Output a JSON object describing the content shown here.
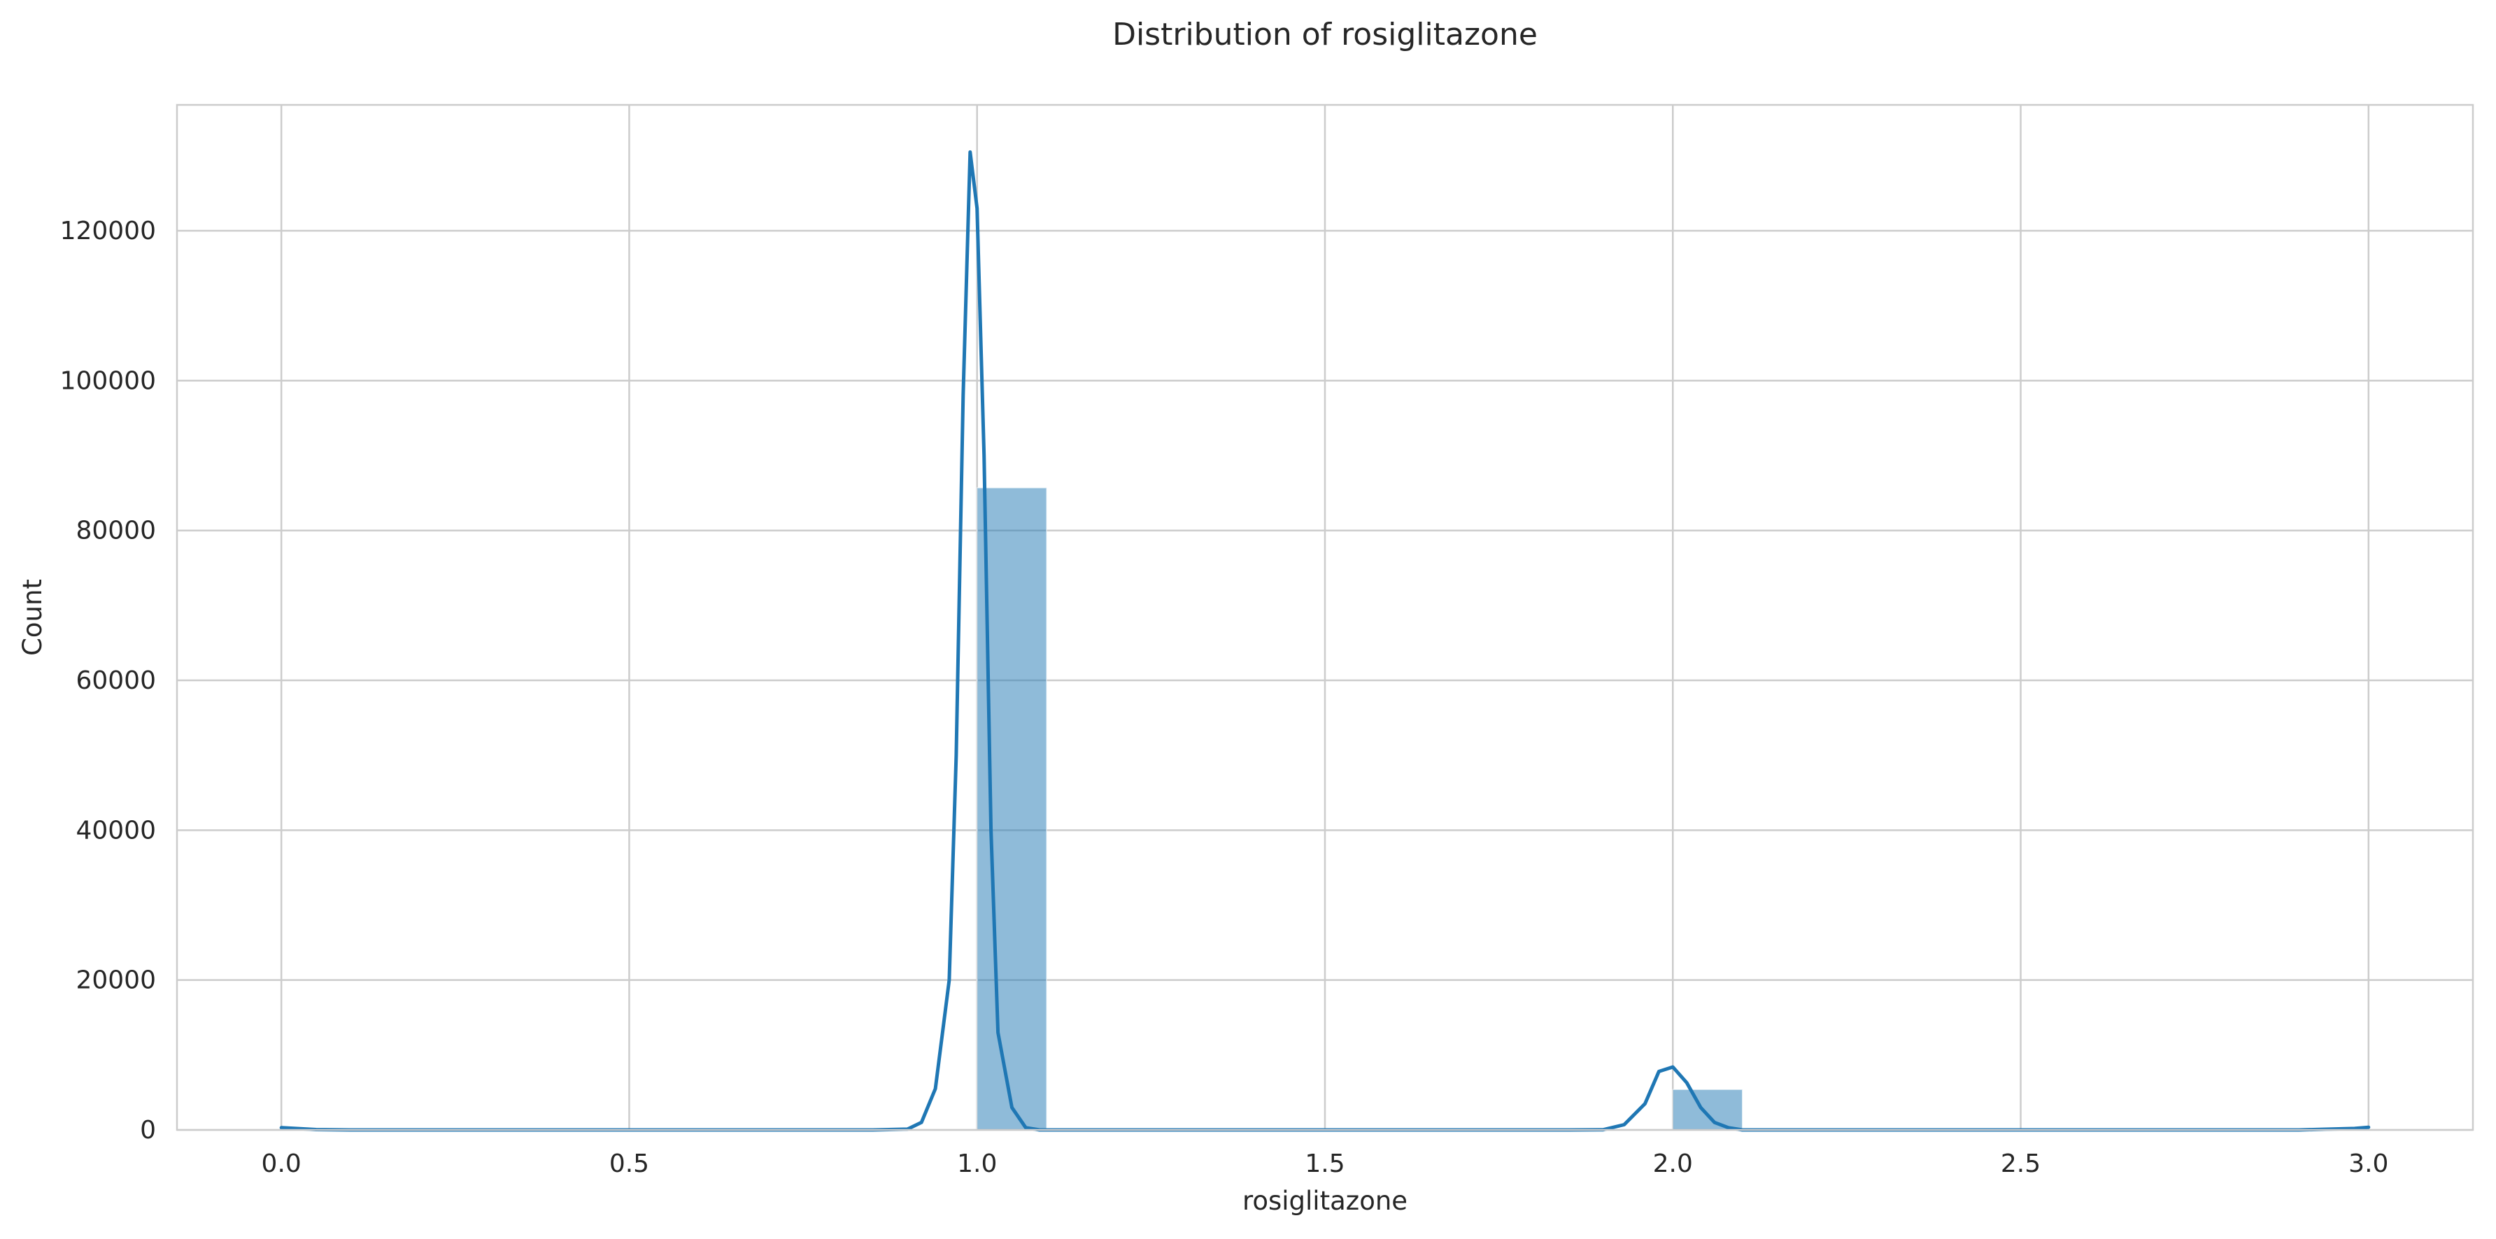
{
  "chart_data": {
    "type": "bar",
    "title": "Distribution of rosiglitazone",
    "xlabel": "rosiglitazone",
    "ylabel": "Count",
    "xlim": [
      -0.15,
      3.15
    ],
    "ylim": [
      0,
      136800
    ],
    "xticks": [
      0.0,
      0.5,
      1.0,
      1.5,
      2.0,
      2.5,
      3.0
    ],
    "xtick_labels": [
      "0.0",
      "0.5",
      "1.0",
      "1.5",
      "2.0",
      "2.5",
      "3.0"
    ],
    "yticks": [
      0,
      20000,
      40000,
      60000,
      80000,
      100000,
      120000
    ],
    "ytick_labels": [
      "0",
      "20000",
      "40000",
      "60000",
      "80000",
      "100000",
      "120000"
    ],
    "grid": true,
    "bin_width": 0.1,
    "bars": [
      {
        "x_start": 0.0,
        "value": 6
      },
      {
        "x_start": 1.0,
        "value": 85700
      },
      {
        "x_start": 2.0,
        "value": 5400
      },
      {
        "x_start": 2.9,
        "value": 2
      }
    ],
    "kde": {
      "name": "",
      "x": [
        0.0,
        0.05,
        0.1,
        0.5,
        0.85,
        0.9,
        0.92,
        0.94,
        0.96,
        0.97,
        0.98,
        0.99,
        1.0,
        1.01,
        1.02,
        1.03,
        1.05,
        1.07,
        1.09,
        1.12,
        1.2,
        1.5,
        1.85,
        1.9,
        1.93,
        1.96,
        1.98,
        2.0,
        2.02,
        2.04,
        2.06,
        2.08,
        2.1,
        2.15,
        2.5,
        2.9,
        2.98,
        3.0
      ],
      "y": [
        300,
        50,
        0,
        0,
        0,
        100,
        1000,
        5500,
        20000,
        50000,
        98000,
        130500,
        123000,
        90000,
        40000,
        13000,
        3000,
        300,
        0,
        0,
        0,
        0,
        0,
        30,
        700,
        3500,
        7800,
        8400,
        6300,
        3000,
        1000,
        300,
        0,
        0,
        0,
        0,
        200,
        350
      ]
    },
    "colors": {
      "bar_fill": "#1f77b4",
      "bar_fill_opacity": 0.5,
      "kde_line": "#1f77b4",
      "grid": "#cccccc",
      "spine": "#cccccc",
      "text": "#262626"
    }
  }
}
